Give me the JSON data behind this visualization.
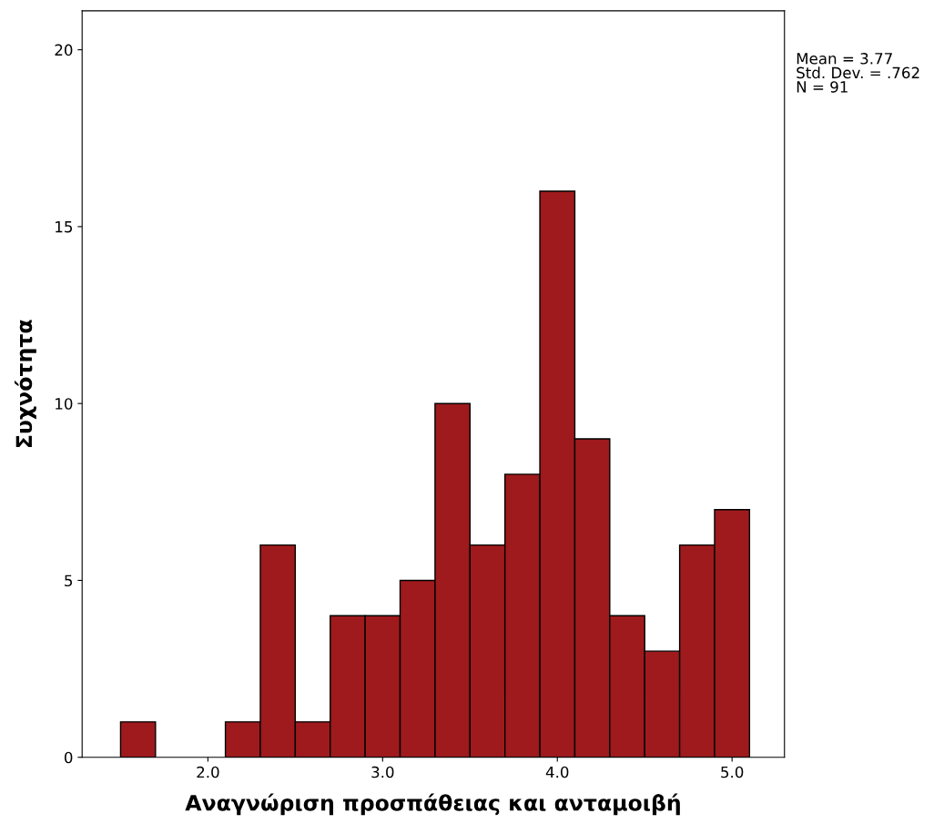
{
  "chart_data": {
    "type": "histogram",
    "xlabel": "Αναγνώριση προσπάθειας και ανταμοιβή",
    "ylabel": "Συχνότητα",
    "bins": [
      1.5,
      1.7,
      1.9,
      2.1,
      2.3,
      2.5,
      2.7,
      2.9,
      3.1,
      3.3,
      3.5,
      3.7,
      3.9,
      4.1,
      4.3,
      4.5,
      4.7,
      4.9,
      5.1
    ],
    "values": [
      1,
      0,
      0,
      1,
      6,
      1,
      4,
      4,
      5,
      10,
      6,
      8,
      16,
      9,
      4,
      3,
      6,
      7
    ],
    "color": "#9e1a1c",
    "xlim": [
      1.28,
      5.3
    ],
    "ylim": [
      0,
      21.1
    ],
    "xticks": [
      {
        "value": 2,
        "label": "2.0"
      },
      {
        "value": 3,
        "label": "3.0"
      },
      {
        "value": 4,
        "label": "4.0"
      },
      {
        "value": 5,
        "label": "5.0"
      }
    ],
    "yticks": [
      0,
      5,
      10,
      15,
      20
    ],
    "annotations": [
      "Mean = 3.77",
      "Std. Dev. = .762",
      "N = 91"
    ],
    "grid": false,
    "legend": false
  }
}
